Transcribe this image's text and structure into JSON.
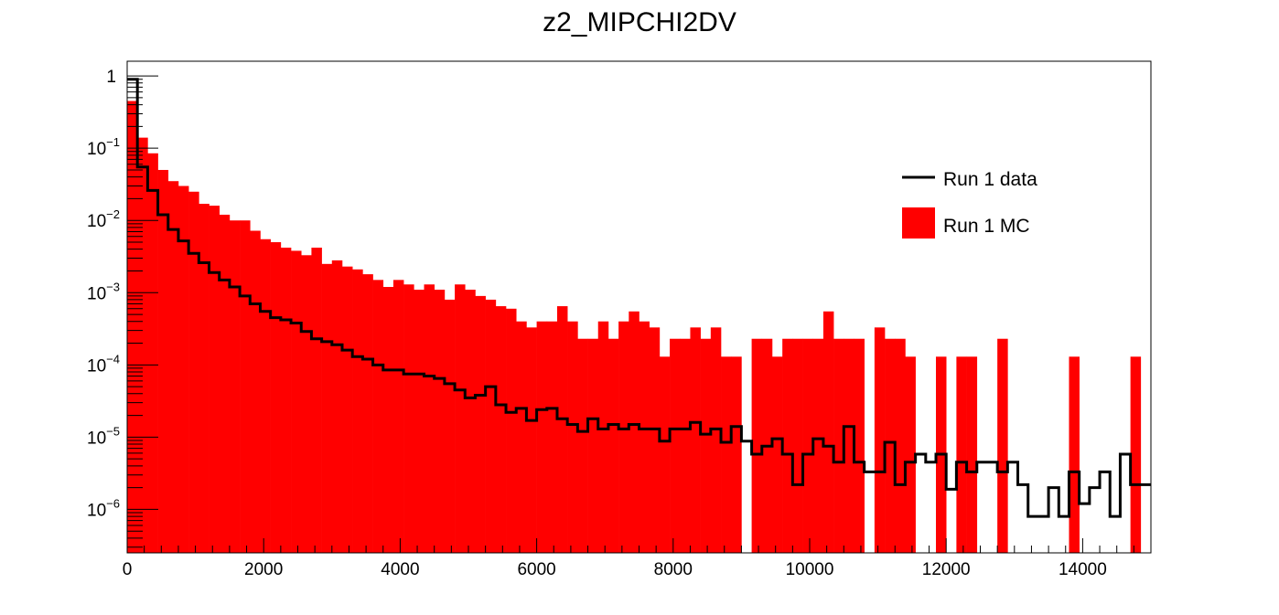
{
  "chart_data": {
    "type": "histogram",
    "title": "z2_MIPCHI2DV",
    "xlabel": "",
    "ylabel": "",
    "xlim": [
      0,
      15000
    ],
    "ylim": [
      2.5e-07,
      1.6
    ],
    "y_scale": "log",
    "bin_width": 150,
    "x_ticks": [
      "0",
      "2000",
      "4000",
      "6000",
      "8000",
      "10000",
      "12000",
      "14000"
    ],
    "x_tick_values": [
      0,
      2000,
      4000,
      6000,
      8000,
      10000,
      12000,
      14000
    ],
    "y_ticks": [
      {
        "value": 1,
        "base": "1",
        "exp": ""
      },
      {
        "value": 0.1,
        "base": "10",
        "exp": "−1"
      },
      {
        "value": 0.01,
        "base": "10",
        "exp": "−2"
      },
      {
        "value": 0.001,
        "base": "10",
        "exp": "−3"
      },
      {
        "value": 0.0001,
        "base": "10",
        "exp": "−4"
      },
      {
        "value": 1e-05,
        "base": "10",
        "exp": "−5"
      },
      {
        "value": 1e-06,
        "base": "10",
        "exp": "−6"
      }
    ],
    "legend": {
      "placement": "top-right",
      "entries": [
        "Run 1 data",
        "Run 1 MC"
      ]
    },
    "grid": false,
    "series": [
      {
        "name": "Run 1 MC",
        "style": "filled",
        "color": "#ff0000",
        "values": [
          0.45,
          0.14,
          0.085,
          0.05,
          0.035,
          0.03,
          0.025,
          0.017,
          0.016,
          0.012,
          0.01,
          0.01,
          0.0072,
          0.0055,
          0.005,
          0.0042,
          0.0038,
          0.0033,
          0.0042,
          0.0025,
          0.0028,
          0.0023,
          0.0021,
          0.0018,
          0.0015,
          0.0012,
          0.0015,
          0.0013,
          0.0011,
          0.0013,
          0.0011,
          0.0008,
          0.0013,
          0.0011,
          0.0009,
          0.0008,
          0.00065,
          0.0006,
          0.0004,
          0.00033,
          0.0004,
          0.0004,
          0.00065,
          0.0004,
          0.00023,
          0.00023,
          0.0004,
          0.00023,
          0.0004,
          0.00055,
          0.0004,
          0.00033,
          0.00013,
          0.00023,
          0.00023,
          0.00033,
          0.00023,
          0.00033,
          0.00013,
          0.00013,
          0.0,
          0.00023,
          0.00023,
          0.00013,
          0.00023,
          0.00023,
          0.00023,
          0.00023,
          0.00055,
          0.00023,
          0.00023,
          0.00023,
          0.0,
          0.00033,
          0.00023,
          0.00023,
          0.00013,
          0.0,
          0.0,
          0.00013,
          0.0,
          0.00013,
          0.00013,
          0.0,
          0.0,
          0.00023,
          0.0,
          0.0,
          0.0,
          0.0,
          0.0,
          0.0,
          0.00013,
          0.0,
          0.0,
          0.0,
          0.0,
          0.0,
          0.00013,
          0.0
        ]
      },
      {
        "name": "Run 1 data",
        "style": "step",
        "color": "#000000",
        "values": [
          0.9,
          0.055,
          0.026,
          0.012,
          0.0075,
          0.0052,
          0.0035,
          0.0026,
          0.0019,
          0.0015,
          0.0012,
          0.0009,
          0.0007,
          0.00055,
          0.00045,
          0.00042,
          0.00038,
          0.00029,
          0.00023,
          0.00021,
          0.00019,
          0.00016,
          0.00013,
          0.00012,
          0.0001,
          8.5e-05,
          8.5e-05,
          7.5e-05,
          7.5e-05,
          7e-05,
          6.5e-05,
          5.5e-05,
          4.5e-05,
          3.5e-05,
          3.8e-05,
          5e-05,
          2.8e-05,
          2.2e-05,
          2.5e-05,
          1.7e-05,
          2.4e-05,
          2.5e-05,
          1.8e-05,
          1.5e-05,
          1.2e-05,
          1.8e-05,
          1.3e-05,
          1.5e-05,
          1.3e-05,
          1.5e-05,
          1.3e-05,
          1.3e-05,
          8.8e-06,
          1.3e-05,
          1.3e-05,
          1.6e-05,
          1.1e-05,
          1.3e-05,
          8.5e-06,
          1.4e-05,
          8.8e-06,
          5.8e-06,
          7.5e-06,
          9.5e-06,
          5.8e-06,
          2.2e-06,
          5.8e-06,
          9.5e-06,
          7.5e-06,
          4.5e-06,
          1.4e-05,
          4.5e-06,
          3.3e-06,
          3.3e-06,
          8.5e-06,
          2.2e-06,
          4.5e-06,
          5.8e-06,
          4.5e-06,
          5.8e-06,
          1.9e-06,
          4.5e-06,
          3.3e-06,
          4.5e-06,
          4.5e-06,
          3.3e-06,
          4.5e-06,
          2.2e-06,
          8e-07,
          8e-07,
          2e-06,
          8e-07,
          3.3e-06,
          1.2e-06,
          2e-06,
          3.3e-06,
          8e-07,
          5.8e-06,
          2.2e-06,
          2.2e-06
        ]
      }
    ]
  }
}
